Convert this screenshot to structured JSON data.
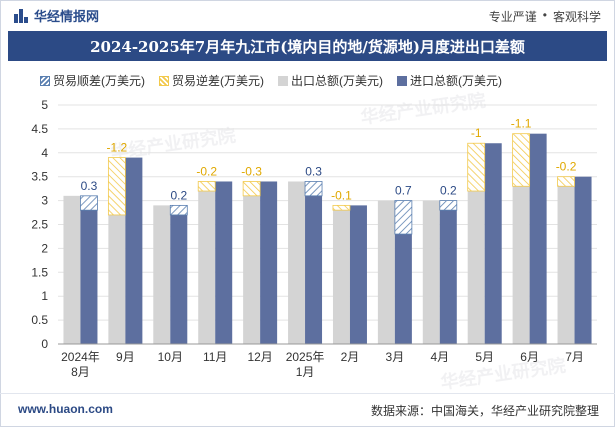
{
  "header": {
    "brand": "华经情报网",
    "tags": [
      "专业严谨",
      "•",
      "客观科学"
    ]
  },
  "title": "2024-2025年7月年九江市(境内目的地/货源地)月度进出口差额",
  "legend": [
    {
      "key": "surplus",
      "label": "贸易顺差(万美元)"
    },
    {
      "key": "deficit",
      "label": "贸易逆差(万美元)"
    },
    {
      "key": "export",
      "label": "出口总额(万美元)"
    },
    {
      "key": "import",
      "label": "进口总额(万美元)"
    }
  ],
  "chart_data": {
    "type": "bar",
    "categories": [
      "2024年\n8月",
      "9月",
      "10月",
      "11月",
      "12月",
      "2025年\n1月",
      "2月",
      "3月",
      "4月",
      "5月",
      "6月",
      "7月"
    ],
    "series": [
      {
        "name": "出口总额(万美元)",
        "values": [
          3.1,
          2.7,
          2.9,
          3.2,
          3.1,
          3.4,
          2.8,
          3.0,
          3.0,
          3.2,
          3.3,
          3.3
        ]
      },
      {
        "name": "进口总额(万美元)",
        "values": [
          2.8,
          3.9,
          2.7,
          3.4,
          3.4,
          3.1,
          2.9,
          2.3,
          2.8,
          4.2,
          4.4,
          3.5
        ]
      }
    ],
    "balance_labels": [
      "0.3",
      "-1.2",
      "0.2",
      "-0.2",
      "-0.3",
      "0.3",
      "-0.1",
      "0.7",
      "0.2",
      "-1",
      "-1.1",
      "-0.2"
    ],
    "ylim": [
      0,
      5
    ],
    "yticks": [
      "0",
      "0.5",
      "1",
      "1.5",
      "2",
      "2.5",
      "3",
      "3.5",
      "4",
      "4.5",
      "5"
    ],
    "grid": true,
    "legend_position": "top",
    "colors": {
      "export": "#d4d4d4",
      "import": "#5d6f9f",
      "surplus_hatch": "#5a7fb0",
      "deficit_hatch": "#f2c94c",
      "surplus_label": "#2c4a85",
      "deficit_label": "#e0a800"
    }
  },
  "watermark": "华经产业研究院",
  "footer": {
    "site": "www.huaon.com",
    "source": "数据来源：中国海关，华经产业研究院整理"
  }
}
